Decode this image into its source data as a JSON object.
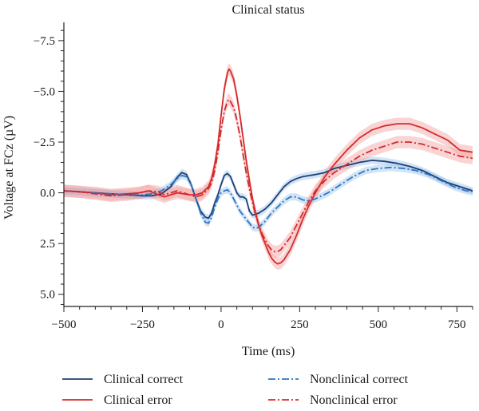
{
  "chart_data": {
    "type": "line",
    "title": "Clinical status",
    "xlabel": "Time (ms)",
    "ylabel": "Voltage at FCz (µV)",
    "xlim": [
      -500,
      800
    ],
    "ylim": [
      5.6,
      -8.4
    ],
    "y_inverted": true,
    "xticks": [
      -500,
      -250,
      0,
      250,
      500,
      750
    ],
    "yticks": [
      -7.5,
      -5.0,
      -2.5,
      0.0,
      2.5,
      5.0
    ],
    "xtick_labels": [
      "−500",
      "−250",
      "0",
      "250",
      "500",
      "750"
    ],
    "ytick_labels": [
      "−7.5",
      "−5.0",
      "−2.5",
      "0.0",
      "2.5",
      "5.0"
    ],
    "grid": false,
    "legend_position": "bottom",
    "series": [
      {
        "name": "Clinical correct",
        "color": "#1f3f73",
        "style": "solid",
        "x": [
          -500,
          -450,
          -400,
          -350,
          -300,
          -250,
          -220,
          -190,
          -160,
          -140,
          -125,
          -110,
          -95,
          -80,
          -65,
          -50,
          -40,
          -30,
          -20,
          -10,
          0,
          10,
          20,
          30,
          40,
          50,
          60,
          70,
          80,
          90,
          100,
          120,
          140,
          160,
          180,
          200,
          220,
          240,
          260,
          280,
          300,
          330,
          360,
          400,
          440,
          480,
          520,
          560,
          600,
          640,
          680,
          720,
          760,
          800
        ],
        "y": [
          -0.1,
          -0.05,
          0.0,
          0.05,
          0.1,
          0.15,
          0.15,
          0.05,
          -0.3,
          -0.75,
          -1.0,
          -0.9,
          -0.4,
          0.3,
          0.9,
          1.2,
          1.25,
          1.0,
          0.5,
          0.1,
          -0.4,
          -0.85,
          -0.95,
          -0.8,
          -0.4,
          0.0,
          0.2,
          0.2,
          0.3,
          0.9,
          1.1,
          1.0,
          0.8,
          0.5,
          0.1,
          -0.3,
          -0.55,
          -0.7,
          -0.8,
          -0.85,
          -0.9,
          -1.0,
          -1.2,
          -1.35,
          -1.5,
          -1.6,
          -1.55,
          -1.45,
          -1.3,
          -1.1,
          -0.8,
          -0.5,
          -0.3,
          -0.1
        ],
        "band": 0.18
      },
      {
        "name": "Clinical error",
        "color": "#d62a2a",
        "style": "solid",
        "x": [
          -500,
          -450,
          -400,
          -350,
          -300,
          -260,
          -230,
          -200,
          -180,
          -160,
          -140,
          -120,
          -100,
          -80,
          -60,
          -40,
          -30,
          -20,
          -10,
          0,
          10,
          20,
          25,
          30,
          40,
          50,
          60,
          70,
          80,
          90,
          100,
          110,
          120,
          130,
          140,
          150,
          160,
          170,
          180,
          190,
          200,
          220,
          240,
          260,
          280,
          300,
          330,
          360,
          400,
          440,
          480,
          520,
          560,
          600,
          640,
          680,
          720,
          760,
          800
        ],
        "y": [
          -0.1,
          -0.05,
          0.0,
          0.1,
          0.05,
          0.0,
          -0.1,
          0.1,
          0.2,
          0.1,
          0.0,
          0.05,
          0.1,
          0.1,
          0.0,
          -0.3,
          -0.7,
          -1.4,
          -2.4,
          -3.8,
          -5.1,
          -5.9,
          -6.1,
          -6.0,
          -5.6,
          -4.8,
          -3.8,
          -2.7,
          -1.6,
          -0.6,
          0.3,
          1.0,
          1.6,
          2.1,
          2.5,
          2.9,
          3.2,
          3.4,
          3.5,
          3.45,
          3.3,
          2.8,
          2.1,
          1.3,
          0.6,
          0.0,
          -0.8,
          -1.4,
          -2.1,
          -2.7,
          -3.1,
          -3.3,
          -3.4,
          -3.4,
          -3.2,
          -2.9,
          -2.6,
          -2.1,
          -2.0
        ],
        "band": 0.3
      },
      {
        "name": "Nonclinical correct",
        "color": "#2f74c4",
        "style": "dashdot",
        "x": [
          -500,
          -450,
          -400,
          -350,
          -300,
          -250,
          -220,
          -190,
          -160,
          -140,
          -125,
          -110,
          -95,
          -80,
          -65,
          -50,
          -40,
          -30,
          -20,
          -10,
          0,
          10,
          20,
          30,
          40,
          50,
          60,
          70,
          80,
          90,
          100,
          110,
          120,
          140,
          160,
          180,
          200,
          220,
          240,
          260,
          280,
          300,
          340,
          380,
          420,
          460,
          500,
          540,
          580,
          620,
          660,
          700,
          740,
          780,
          800
        ],
        "y": [
          -0.1,
          -0.05,
          0.0,
          0.05,
          0.1,
          0.1,
          0.05,
          -0.1,
          -0.4,
          -0.7,
          -0.85,
          -0.8,
          -0.4,
          0.3,
          1.0,
          1.45,
          1.5,
          1.2,
          0.7,
          0.3,
          0.0,
          -0.1,
          -0.15,
          0.0,
          0.3,
          0.6,
          0.9,
          1.1,
          1.3,
          1.5,
          1.7,
          1.75,
          1.7,
          1.4,
          1.0,
          0.7,
          0.4,
          0.2,
          0.2,
          0.35,
          0.4,
          0.3,
          0.0,
          -0.4,
          -0.8,
          -1.1,
          -1.2,
          -1.25,
          -1.2,
          -1.1,
          -0.9,
          -0.6,
          -0.3,
          -0.1,
          -0.05
        ],
        "band": 0.18
      },
      {
        "name": "Nonclinical error",
        "color": "#d62a2a",
        "style": "dashdot",
        "x": [
          -500,
          -450,
          -400,
          -350,
          -300,
          -260,
          -230,
          -200,
          -180,
          -160,
          -140,
          -120,
          -100,
          -80,
          -60,
          -40,
          -30,
          -20,
          -10,
          0,
          10,
          20,
          25,
          30,
          40,
          50,
          60,
          70,
          80,
          90,
          100,
          110,
          120,
          130,
          140,
          150,
          160,
          170,
          180,
          190,
          200,
          220,
          240,
          260,
          280,
          300,
          330,
          360,
          400,
          440,
          480,
          520,
          560,
          600,
          640,
          680,
          720,
          760,
          800
        ],
        "y": [
          -0.1,
          -0.05,
          0.05,
          0.15,
          0.1,
          0.0,
          -0.1,
          -0.05,
          0.1,
          0.0,
          -0.1,
          0.0,
          0.1,
          0.2,
          0.1,
          -0.2,
          -0.5,
          -1.1,
          -2.0,
          -3.1,
          -4.0,
          -4.5,
          -4.6,
          -4.5,
          -4.2,
          -3.6,
          -2.8,
          -1.9,
          -1.0,
          -0.2,
          0.5,
          1.1,
          1.6,
          2.0,
          2.3,
          2.6,
          2.8,
          2.9,
          2.9,
          2.8,
          2.6,
          2.2,
          1.6,
          1.0,
          0.4,
          -0.1,
          -0.6,
          -1.0,
          -1.4,
          -1.8,
          -2.1,
          -2.3,
          -2.5,
          -2.5,
          -2.4,
          -2.2,
          -2.0,
          -1.8,
          -1.7
        ],
        "band": 0.3
      }
    ]
  }
}
